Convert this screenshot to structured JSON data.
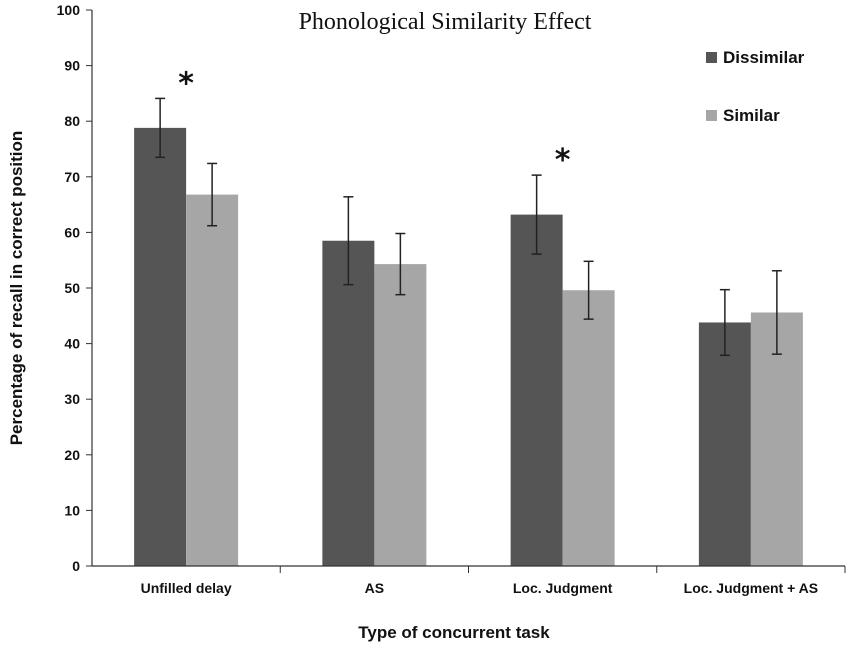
{
  "chart_data": {
    "type": "bar",
    "title": "Phonological Similarity Effect",
    "xlabel": "Type of concurrent task",
    "ylabel": "Percentage of recall in correct position",
    "ylim": [
      0,
      100
    ],
    "yticks": [
      0,
      10,
      20,
      30,
      40,
      50,
      60,
      70,
      80,
      90,
      100
    ],
    "categories": [
      "Unfilled delay",
      "AS",
      "Loc. Judgment",
      "Loc. Judgment + AS"
    ],
    "series": [
      {
        "name": "Dissimilar",
        "color": "#555555",
        "values": [
          78.8,
          58.5,
          63.2,
          43.8
        ],
        "error": [
          5.3,
          7.9,
          7.1,
          5.9
        ]
      },
      {
        "name": "Similar",
        "color": "#a6a6a6",
        "values": [
          66.8,
          54.3,
          49.6,
          45.6
        ],
        "error": [
          5.6,
          5.5,
          5.2,
          7.5
        ]
      }
    ],
    "significance": [
      {
        "category": "Unfilled delay",
        "label": "*"
      },
      {
        "category": "Loc. Judgment",
        "label": "*"
      }
    ],
    "legend_position": "top-right",
    "grid": false
  }
}
